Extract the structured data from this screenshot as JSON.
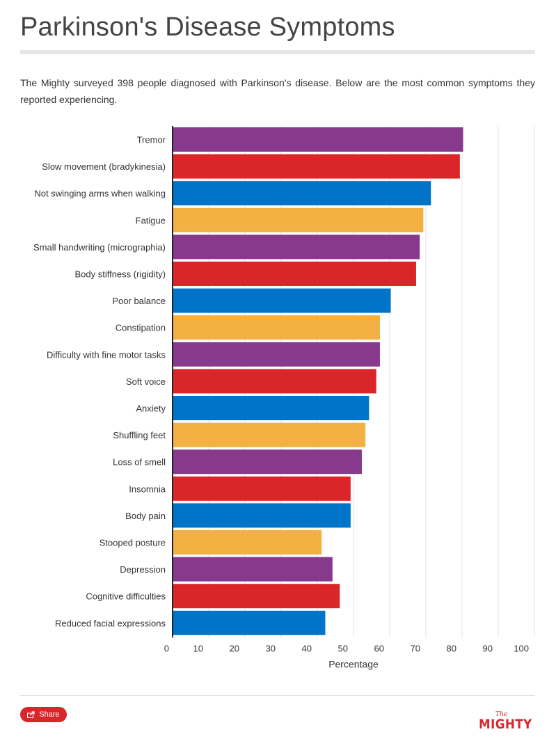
{
  "title": "Parkinson's Disease Symptoms",
  "description": "The Mighty surveyed 398 people diagnosed with Parkinson's disease. Below are the most common symptoms they reported experiencing.",
  "chart_data": {
    "type": "bar",
    "orientation": "horizontal",
    "categories": [
      "Tremor",
      "Slow movement (bradykinesia)",
      "Not swinging arms when walking",
      "Fatigue",
      "Small handwriting (micrographia)",
      "Body stiffness (rigidity)",
      "Poor balance",
      "Constipation",
      "Difficulty with fine motor tasks",
      "Soft voice",
      "Anxiety",
      "Shuffling feet",
      "Loss of smell",
      "Insomnia",
      "Body pain",
      "Stooped posture",
      "Depression",
      "Cognitive difficulties",
      "Reduced facial expressions"
    ],
    "values": [
      80.3,
      79.4,
      71.4,
      69.3,
      68.3,
      67.3,
      60.3,
      57.3,
      57.3,
      56.3,
      54.3,
      53.3,
      52.3,
      49.2,
      49.2,
      41.2,
      44.2,
      46.2,
      42.2
    ],
    "colors": [
      "#873a8c",
      "#da2629",
      "#0074c8",
      "#f3b043"
    ],
    "xlabel": "Percentage",
    "ylabel": "",
    "xlim": [
      0,
      100
    ],
    "xticks": [
      "0",
      "10",
      "20",
      "30",
      "40",
      "50",
      "60",
      "70",
      "80",
      "90",
      "100"
    ],
    "grid": true
  },
  "footer": {
    "share_label": "Share",
    "brand_small": "The",
    "brand_big": "MIGHTY"
  }
}
